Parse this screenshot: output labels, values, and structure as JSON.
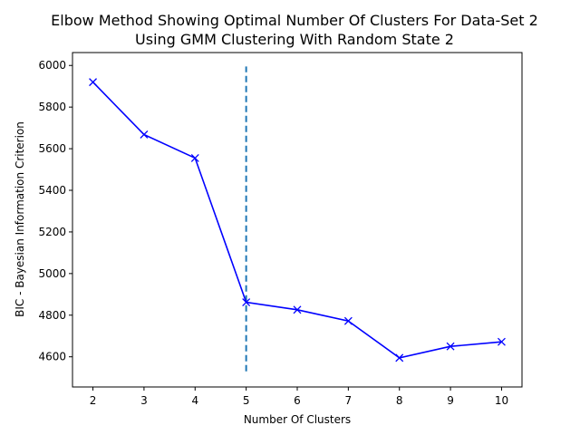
{
  "chart_data": {
    "type": "line",
    "title": "Elbow Method Showing Optimal Number Of Clusters For Data-Set 2",
    "subtitle": "Using GMM Clustering With Random State 2",
    "xlabel": "Number Of Clusters",
    "ylabel": "BIC - Bayesian Information Criterion",
    "x": [
      2,
      3,
      4,
      5,
      6,
      7,
      8,
      9,
      10
    ],
    "series": [
      {
        "values": [
          5920,
          5668,
          5555,
          4862,
          4826,
          4772,
          4595,
          4650,
          4672
        ],
        "color": "#0000ff",
        "marker": "x"
      }
    ],
    "xticks": [
      "2",
      "3",
      "4",
      "5",
      "6",
      "7",
      "8",
      "9",
      "10"
    ],
    "yticks": [
      "4600",
      "4800",
      "5000",
      "5200",
      "5400",
      "5600",
      "5800",
      "6000"
    ],
    "xlim": [
      1.6,
      10.4
    ],
    "ylim": [
      4455,
      6062
    ],
    "vline": {
      "x": 5,
      "ymin": 4530,
      "ymax": 5995,
      "color": "#1f77b4",
      "style": "dashed"
    },
    "grid": false
  }
}
